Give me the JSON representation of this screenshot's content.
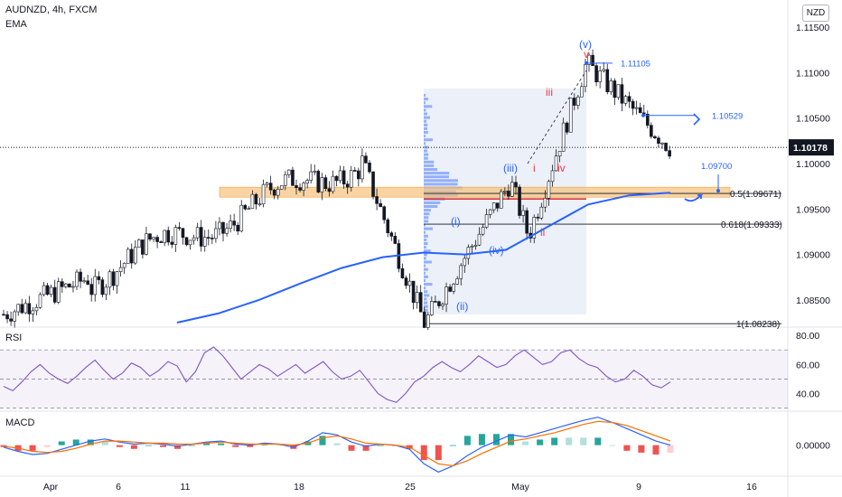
{
  "header": {
    "symbol_line": "AUDNZD, 4h, FXCM",
    "indicator": "EMA"
  },
  "currency_badge": "NZD",
  "panes": {
    "rsi_label": "RSI",
    "macd_label": "MACD"
  },
  "chart_data": [
    {
      "type": "candlestick",
      "symbol": "AUDNZD",
      "timeframe": "4h",
      "y_ticks": [
        1.085,
        1.09,
        1.095,
        1.1,
        1.105,
        1.11,
        1.115
      ],
      "ylim": [
        1.082,
        1.118
      ],
      "last_price": 1.10178,
      "x_labels": [
        "Apr",
        "6",
        "11",
        "18",
        "25",
        "May",
        "9",
        "16"
      ],
      "key_points": [
        {
          "label": "start",
          "value": 1.0834
        },
        {
          "label": "range top",
          "value": 1.1004
        },
        {
          "label": "(ii) low",
          "value": 1.08238
        },
        {
          "label": "(iii)",
          "value": 1.098
        },
        {
          "label": "(iv)",
          "value": 1.092
        },
        {
          "label": "(v) high",
          "value": 1.11105
        },
        {
          "label": "current",
          "value": 1.10178
        }
      ],
      "ema_points": [
        1.0825,
        1.0835,
        1.085,
        1.0868,
        1.0885,
        1.0897,
        1.0902,
        1.09,
        1.0905,
        1.093,
        1.0955,
        1.0965,
        1.0968
      ],
      "fib_levels": [
        {
          "label": "0.5(1.09671)",
          "value": 1.09671
        },
        {
          "label": "0.618(1.09333)",
          "value": 1.09333
        },
        {
          "label": "1(1.08238)",
          "value": 1.08238
        }
      ],
      "annotations": [
        {
          "text": "1.11105",
          "value": 1.11105
        },
        {
          "text": "1.10529",
          "value": 1.10529
        },
        {
          "text": "1.09700",
          "value": 1.097
        },
        {
          "text": "(v)",
          "color": "#2962ff"
        },
        {
          "text": "v",
          "color": "#f23645"
        },
        {
          "text": "iii",
          "color": "#f23645"
        },
        {
          "text": "i",
          "color": "#f23645"
        },
        {
          "text": "iv",
          "color": "#f23645"
        },
        {
          "text": "ii",
          "color": "#f23645"
        },
        {
          "text": "(iii)",
          "color": "#2962ff"
        },
        {
          "text": "(i)",
          "color": "#2962ff"
        },
        {
          "text": "(iv)",
          "color": "#2962ff"
        },
        {
          "text": "(ii)",
          "color": "#2962ff"
        }
      ],
      "support_zone": [
        1.0963,
        1.0974
      ],
      "red_level": 1.0961
    },
    {
      "type": "line",
      "name": "RSI",
      "y_ticks": [
        40.0,
        60.0,
        80.0
      ],
      "ylim": [
        28,
        85
      ],
      "band": [
        30,
        70
      ],
      "points": [
        45,
        42,
        48,
        55,
        60,
        54,
        50,
        47,
        52,
        58,
        63,
        56,
        50,
        54,
        61,
        58,
        52,
        56,
        62,
        59,
        48,
        55,
        68,
        72,
        66,
        58,
        50,
        55,
        60,
        57,
        52,
        56,
        60,
        54,
        58,
        62,
        55,
        50,
        52,
        56,
        48,
        40,
        36,
        34,
        40,
        48,
        52,
        58,
        62,
        58,
        55,
        60,
        66,
        62,
        58,
        60,
        66,
        70,
        65,
        60,
        62,
        68,
        70,
        64,
        60,
        58,
        52,
        48,
        50,
        56,
        52,
        46,
        44,
        48
      ]
    },
    {
      "type": "line",
      "name": "MACD",
      "y_ticks": [
        0.0
      ],
      "ylim": [
        -0.003,
        0.0032
      ],
      "macd": [
        -0.0002,
        -0.0006,
        -0.0009,
        -0.0008,
        -0.0004,
        0.0,
        0.0004,
        0.0006,
        0.0003,
        0.0001,
        0.0002,
        0.0001,
        -0.0001,
        0.0001,
        0.0003,
        0.0004,
        0.0001,
        0.0,
        0.0002,
        0.0001,
        -0.0002,
        0.0004,
        0.0012,
        0.001,
        0.0003,
        -0.0001,
        0.0001,
        0.0,
        -0.0004,
        -0.0018,
        -0.0026,
        -0.002,
        -0.001,
        -0.0002,
        0.0004,
        0.001,
        0.0008,
        0.0012,
        0.0016,
        0.002,
        0.0024,
        0.0027,
        0.0022,
        0.0016,
        0.001,
        0.0004,
        0.0
      ],
      "signal": [
        -0.0001,
        -0.0003,
        -0.0006,
        -0.0007,
        -0.0006,
        -0.0003,
        0.0001,
        0.0004,
        0.0004,
        0.0003,
        0.0002,
        0.0002,
        0.0001,
        0.0001,
        0.0002,
        0.0003,
        0.0002,
        0.0001,
        0.0001,
        0.0001,
        0.0,
        0.0002,
        0.0007,
        0.0009,
        0.0006,
        0.0002,
        0.0001,
        0.0,
        -0.0002,
        -0.001,
        -0.0018,
        -0.002,
        -0.0015,
        -0.0008,
        -0.0002,
        0.0004,
        0.0006,
        0.0009,
        0.0012,
        0.0016,
        0.002,
        0.0023,
        0.0022,
        0.0019,
        0.0014,
        0.0009,
        0.0004
      ]
    }
  ]
}
